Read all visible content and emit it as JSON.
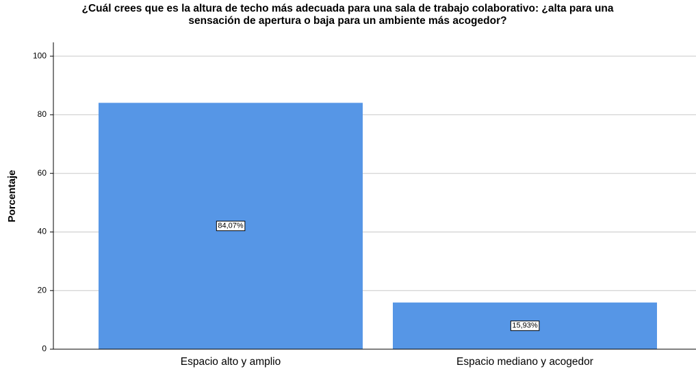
{
  "chart_data": {
    "type": "bar",
    "title": [
      "¿Cuál crees que es la altura de techo más adecuada para una sala de trabajo colaborativo: ¿alta para una",
      "sensación de apertura o baja para un ambiente más acogedor?"
    ],
    "y_label": "Porcentaje",
    "categories": [
      "Espacio alto y amplio",
      "Espacio mediano y acogedor"
    ],
    "values": [
      84.07,
      15.93
    ],
    "value_labels": [
      "84,07%",
      "15,93%"
    ],
    "color": "#5696e6",
    "ylim": [
      0,
      104.7
    ],
    "yticks": [
      0,
      20,
      40,
      60,
      80,
      100
    ],
    "grid": true
  }
}
